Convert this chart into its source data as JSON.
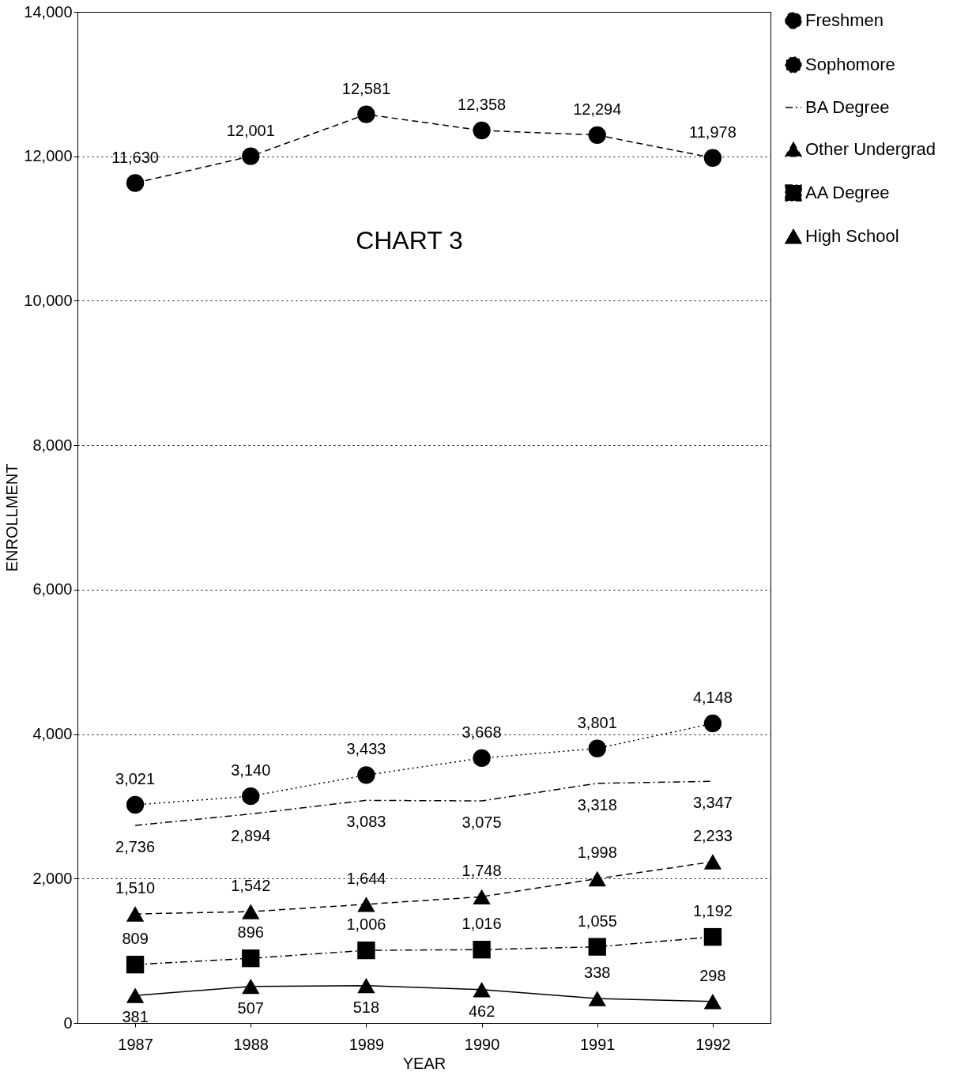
{
  "chart_data": {
    "type": "line",
    "title": "CHART 3",
    "xlabel": "YEAR",
    "ylabel": "ENROLLMENT",
    "categories": [
      "1987",
      "1988",
      "1989",
      "1990",
      "1991",
      "1992"
    ],
    "ylim": [
      0,
      14000
    ],
    "yticks": [
      0,
      {
        "value": 2000,
        "label": "2,000"
      },
      {
        "value": 4000,
        "label": "4,000"
      },
      {
        "value": 6000,
        "label": "6,000"
      },
      {
        "value": 8000,
        "label": "8,000"
      },
      {
        "value": 10000,
        "label": "10,000"
      },
      {
        "value": 12000,
        "label": "12,000"
      },
      {
        "value": 14000,
        "label": "14,000"
      }
    ],
    "grid": "y",
    "legend": "right",
    "series": [
      {
        "name": "Freshmen",
        "color": "#000000",
        "marker": "circle",
        "line_style": "dashed",
        "values": [
          11630,
          12001,
          12581,
          12358,
          12294,
          11978
        ],
        "value_labels": [
          "11,630",
          "12,001",
          "12,581",
          "12,358",
          "12,294",
          "11,978"
        ]
      },
      {
        "name": "Sophomore",
        "color": "#000000",
        "marker": "circle",
        "line_style": "dotted",
        "values": [
          3021,
          3140,
          3433,
          3668,
          3801,
          4148
        ],
        "value_labels": [
          "3,021",
          "3,140",
          "3,433",
          "3,668",
          "3,801",
          "4,148"
        ]
      },
      {
        "name": "BA Degree",
        "color": "#000000",
        "marker": "none",
        "line_style": "dashdot",
        "values": [
          2736,
          2894,
          3083,
          3075,
          3318,
          3347
        ],
        "value_labels": [
          "2,736",
          "2,894",
          "3,083",
          "3,075",
          "3,318",
          "3,347"
        ]
      },
      {
        "name": "Other Undergrad",
        "color": "#000000",
        "marker": "triangle",
        "line_style": "dashed",
        "values": [
          1510,
          1542,
          1644,
          1748,
          1998,
          2233
        ],
        "value_labels": [
          "1,510",
          "1,542",
          "1,644",
          "1,748",
          "1,998",
          "2,233"
        ]
      },
      {
        "name": "AA Degree",
        "color": "#000000",
        "marker": "square",
        "line_style": "dashdot",
        "values": [
          809,
          896,
          1006,
          1016,
          1055,
          1192
        ],
        "value_labels": [
          "809",
          "896",
          "1,006",
          "1,016",
          "1,055",
          "1,192"
        ]
      },
      {
        "name": "High School",
        "color": "#000000",
        "marker": "triangle",
        "line_style": "solid",
        "values": [
          381,
          507,
          518,
          462,
          338,
          298
        ],
        "value_labels": [
          "381",
          "507",
          "518",
          "462",
          "338",
          "298"
        ]
      }
    ]
  }
}
